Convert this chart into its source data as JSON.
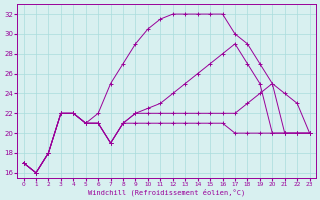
{
  "xlabel": "Windchill (Refroidissement éolien,°C)",
  "bg_color": "#d8f0f0",
  "grid_color": "#aadddd",
  "line_color": "#990099",
  "ylim": [
    15.5,
    33
  ],
  "xlim": [
    -0.5,
    23.5
  ],
  "yticks": [
    16,
    18,
    20,
    22,
    24,
    26,
    28,
    30,
    32
  ],
  "xticks": [
    0,
    1,
    2,
    3,
    4,
    5,
    6,
    7,
    8,
    9,
    10,
    11,
    12,
    13,
    14,
    15,
    16,
    17,
    18,
    19,
    20,
    21,
    22,
    23
  ],
  "series": [
    [
      17,
      16,
      18,
      22,
      22,
      21,
      21,
      19,
      21,
      21,
      21,
      21,
      21,
      21,
      21,
      21,
      21,
      20,
      20,
      20,
      20,
      20,
      20,
      20
    ],
    [
      17,
      16,
      18,
      22,
      22,
      21,
      22,
      25,
      27,
      29,
      30.5,
      31.5,
      32,
      32,
      32,
      32,
      32,
      30,
      29,
      27,
      25,
      24,
      23,
      20
    ],
    [
      17,
      16,
      18,
      22,
      22,
      21,
      21,
      19,
      21,
      22,
      22.5,
      23,
      24,
      25,
      26,
      27,
      28,
      29,
      27,
      25,
      20,
      20,
      20,
      20
    ],
    [
      17,
      16,
      18,
      22,
      22,
      21,
      21,
      19,
      21,
      22,
      22,
      22,
      22,
      22,
      22,
      22,
      22,
      22,
      23,
      24,
      25,
      20,
      20,
      20
    ]
  ]
}
